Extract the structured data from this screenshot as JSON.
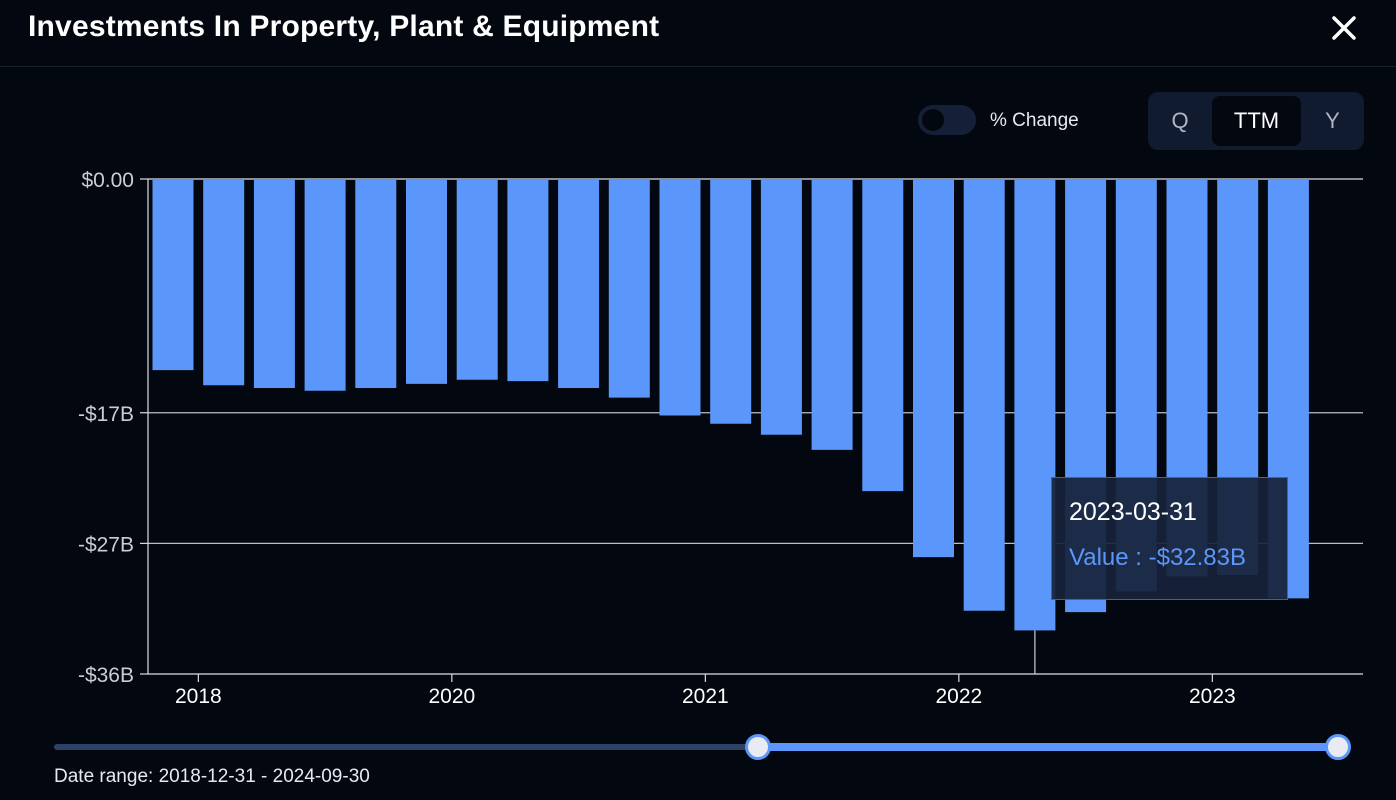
{
  "header": {
    "title": "Investments In Property, Plant & Equipment"
  },
  "controls": {
    "toggle_label": "% Change",
    "toggle_on": false,
    "periods": [
      "Q",
      "TTM",
      "Y"
    ],
    "active_period": "TTM"
  },
  "tooltip": {
    "date": "2023-03-31",
    "value_text": "Value : -$32.83B"
  },
  "range": {
    "text": "Date range: 2018-12-31 - 2024-09-30",
    "start_fraction": 0.548,
    "end_fraction": 1.0
  },
  "colors": {
    "bar": "#5b97fb",
    "background": "#03070f",
    "grid": "#d9dde5",
    "track": "#2b4166"
  },
  "chart_data": {
    "type": "bar",
    "xlabel": "",
    "ylabel": "",
    "grid": true,
    "ylim": [
      -36,
      0
    ],
    "yticks": [
      {
        "value": 0,
        "label": "$0.00"
      },
      {
        "value": -17,
        "label": "-$17B"
      },
      {
        "value": -26.5,
        "label": "-$27B"
      },
      {
        "value": -36,
        "label": "-$36B"
      }
    ],
    "xticks": [
      {
        "index": 0.5,
        "label": "2018"
      },
      {
        "index": 5.5,
        "label": "2020"
      },
      {
        "index": 10.5,
        "label": "2021"
      },
      {
        "index": 15.5,
        "label": "2022"
      },
      {
        "index": 20.5,
        "label": "2023"
      }
    ],
    "highlight_index": 17,
    "series": [
      {
        "values": [
          -13.9,
          -15.0,
          -15.2,
          -15.4,
          -15.2,
          -14.9,
          -14.6,
          -14.7,
          -15.2,
          -15.9,
          -17.2,
          -17.8,
          -18.6,
          -19.7,
          -22.7,
          -27.5,
          -31.4,
          -32.83,
          -31.5,
          -30.0,
          -28.9,
          -28.8,
          -30.5
        ]
      }
    ]
  }
}
